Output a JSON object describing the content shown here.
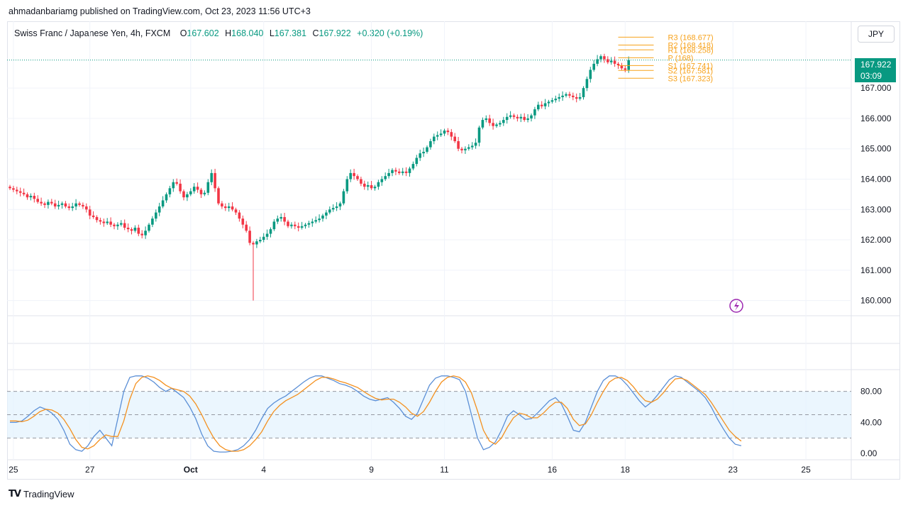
{
  "publisher_line": "ahmadanbariamg published on TradingView.com, Oct 23, 2023 11:56 UTC+3",
  "legend": {
    "symbol": "Swiss Franc / Japanese Yen, 4h, FXCM",
    "open_label": "O",
    "open": "167.602",
    "high_label": "H",
    "high": "168.040",
    "low_label": "L",
    "low": "167.381",
    "close_label": "C",
    "close": "167.922",
    "change": "+0.320 (+0.19%)"
  },
  "currency_button": "JPY",
  "last_price": {
    "price": "167.922",
    "countdown": "03:09"
  },
  "footer_brand": "TradingView",
  "colors": {
    "up": "#089981",
    "down": "#f23645",
    "pivot": "#f7a21b",
    "k_line": "#5b8fd6",
    "d_line": "#f4901e",
    "band": "#e3f2fd"
  },
  "chart_data": [
    {
      "type": "candlestick",
      "ylim": [
        159.5,
        169.2
      ],
      "y_ticks": [
        "167.000",
        "166.000",
        "165.000",
        "164.000",
        "163.000",
        "162.000",
        "161.000",
        "160.000"
      ],
      "y_tick_values": [
        167,
        166,
        165,
        164,
        163,
        162,
        161,
        160
      ],
      "x_ticks": [
        "25",
        "27",
        "Oct",
        "4",
        "9",
        "11",
        "16",
        "18",
        "23",
        "25"
      ],
      "x_tick_index": [
        1,
        23,
        52,
        73,
        104,
        125,
        156,
        177,
        208,
        229
      ],
      "pivot_levels": [
        {
          "label": "R3 (168.677)",
          "value": 168.677
        },
        {
          "label": "R2 (168.418)",
          "value": 168.418
        },
        {
          "label": "R1 (168.258)",
          "value": 168.258
        },
        {
          "label": "P (168)",
          "value": 168.0
        },
        {
          "label": "S1 (167.741)",
          "value": 167.741
        },
        {
          "label": "S2 (167.581)",
          "value": 167.581
        },
        {
          "label": "S3 (167.323)",
          "value": 167.323
        }
      ],
      "last_close": 167.922,
      "closes": [
        163.7,
        163.65,
        163.6,
        163.55,
        163.5,
        163.4,
        163.45,
        163.35,
        163.25,
        163.2,
        163.15,
        163.25,
        163.2,
        163.1,
        163.15,
        163.2,
        163.1,
        163.05,
        163.1,
        163.2,
        163.15,
        163.1,
        163.0,
        162.8,
        162.75,
        162.65,
        162.6,
        162.55,
        162.6,
        162.5,
        162.45,
        162.5,
        162.55,
        162.4,
        162.35,
        162.3,
        162.4,
        162.2,
        162.15,
        162.3,
        162.5,
        162.7,
        162.9,
        163.1,
        163.3,
        163.5,
        163.7,
        163.9,
        163.85,
        163.6,
        163.4,
        163.5,
        163.6,
        163.75,
        163.65,
        163.5,
        163.55,
        163.9,
        164.2,
        163.7,
        163.2,
        163.1,
        163.05,
        163.1,
        163.0,
        162.9,
        162.7,
        162.5,
        162.3,
        161.9,
        161.85,
        161.95,
        162.0,
        162.1,
        162.2,
        162.35,
        162.6,
        162.7,
        162.75,
        162.6,
        162.45,
        162.5,
        162.45,
        162.4,
        162.45,
        162.5,
        162.55,
        162.6,
        162.65,
        162.7,
        162.8,
        162.9,
        163.0,
        163.05,
        163.1,
        163.2,
        163.6,
        164.0,
        164.2,
        164.1,
        164.0,
        163.85,
        163.75,
        163.8,
        163.7,
        163.75,
        163.9,
        164.0,
        164.1,
        164.2,
        164.3,
        164.25,
        164.2,
        164.25,
        164.2,
        164.35,
        164.5,
        164.7,
        164.85,
        164.9,
        165.05,
        165.25,
        165.4,
        165.45,
        165.5,
        165.6,
        165.55,
        165.4,
        165.25,
        165.0,
        164.95,
        165.0,
        165.05,
        165.1,
        165.2,
        165.7,
        165.95,
        166.0,
        165.85,
        165.75,
        165.8,
        165.85,
        165.95,
        166.05,
        166.1,
        166.05,
        166.0,
        166.05,
        165.95,
        166.0,
        166.1,
        166.3,
        166.45,
        166.4,
        166.5,
        166.55,
        166.6,
        166.65,
        166.7,
        166.75,
        166.8,
        166.75,
        166.7,
        166.65,
        166.7,
        167.0,
        167.3,
        167.6,
        167.8,
        167.95,
        168.05,
        167.95,
        167.85,
        167.9,
        167.8,
        167.75,
        167.65,
        167.6,
        167.922
      ],
      "series_note": ""
    },
    {
      "type": "line",
      "ylim": [
        -8,
        108
      ],
      "y_ticks": [
        "80.00",
        "40.00",
        "0.00"
      ],
      "y_tick_values": [
        80,
        40,
        0
      ],
      "band": [
        20,
        80
      ],
      "mid_line": 50,
      "series": [
        {
          "color": "#5b8fd6",
          "values": [
            40,
            40,
            42,
            48,
            55,
            60,
            57,
            52,
            44,
            30,
            12,
            5,
            3,
            10,
            22,
            30,
            20,
            10,
            45,
            80,
            98,
            100,
            100,
            97,
            92,
            85,
            80,
            84,
            78,
            72,
            60,
            45,
            25,
            10,
            3,
            2,
            2,
            3,
            5,
            10,
            18,
            30,
            45,
            58,
            65,
            70,
            74,
            80,
            86,
            92,
            97,
            100,
            100,
            97,
            94,
            90,
            88,
            85,
            80,
            74,
            70,
            68,
            70,
            72,
            66,
            58,
            48,
            44,
            52,
            70,
            88,
            97,
            100,
            100,
            98,
            95,
            80,
            50,
            20,
            5,
            8,
            15,
            30,
            48,
            55,
            50,
            44,
            45,
            52,
            60,
            68,
            72,
            64,
            48,
            30,
            28,
            40,
            60,
            80,
            94,
            100,
            100,
            96,
            88,
            78,
            68,
            60,
            66,
            75,
            85,
            95,
            100,
            98,
            92,
            86,
            80,
            72,
            60,
            45,
            32,
            20,
            12,
            10
          ]
        },
        {
          "color": "#f4901e",
          "values": [
            42,
            42,
            41,
            43,
            48,
            54,
            57,
            56,
            52,
            44,
            32,
            18,
            8,
            6,
            10,
            18,
            24,
            22,
            22,
            42,
            70,
            90,
            98,
            100,
            98,
            94,
            88,
            84,
            82,
            80,
            74,
            64,
            50,
            34,
            20,
            10,
            5,
            3,
            3,
            5,
            10,
            18,
            28,
            42,
            54,
            62,
            68,
            72,
            76,
            82,
            88,
            94,
            98,
            98,
            96,
            93,
            91,
            88,
            85,
            80,
            75,
            71,
            69,
            70,
            70,
            66,
            60,
            52,
            48,
            54,
            66,
            80,
            92,
            98,
            100,
            98,
            92,
            78,
            55,
            30,
            16,
            12,
            20,
            34,
            46,
            52,
            50,
            46,
            46,
            52,
            60,
            66,
            66,
            58,
            44,
            36,
            38,
            50,
            66,
            80,
            92,
            97,
            98,
            94,
            86,
            76,
            68,
            66,
            70,
            78,
            88,
            96,
            97,
            94,
            88,
            82,
            76,
            66,
            54,
            42,
            30,
            22,
            16
          ]
        }
      ]
    }
  ]
}
